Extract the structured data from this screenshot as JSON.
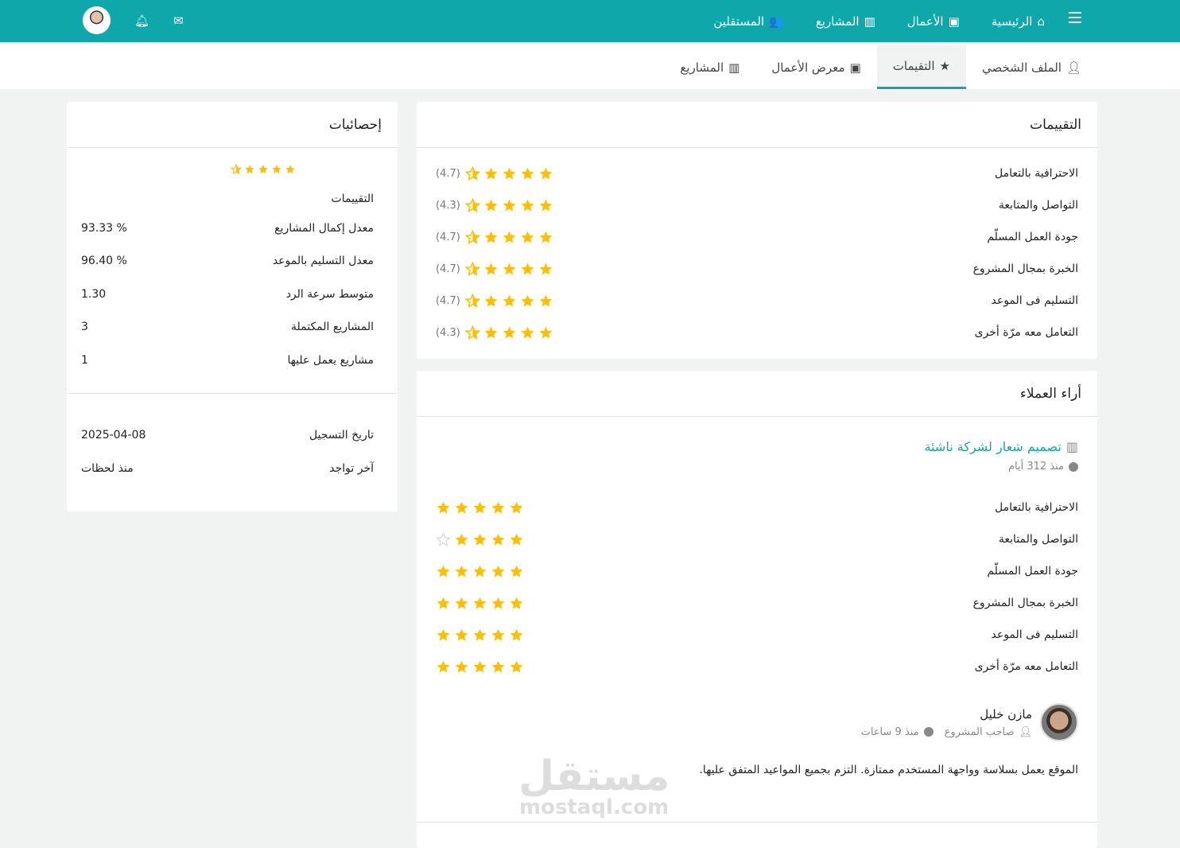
{
  "topnav": {
    "items": [
      {
        "label": "الرئيسية",
        "icon": "home-icon"
      },
      {
        "label": "الأعمال",
        "icon": "image-icon"
      },
      {
        "label": "المشاريع",
        "icon": "briefcase-icon"
      },
      {
        "label": "المستقلين",
        "icon": "users-icon"
      }
    ]
  },
  "colors": {
    "brand": "#0ea7aa",
    "star": "#ffbf00",
    "star_empty": "#d8d8d8"
  },
  "tabs": [
    {
      "label": "الملف الشخصي",
      "icon": "user-icon"
    },
    {
      "label": "التقيمات",
      "icon": "star-icon",
      "active": true
    },
    {
      "label": "معرض الأعمال",
      "icon": "image-icon"
    },
    {
      "label": "المشاريع",
      "icon": "briefcase-icon"
    }
  ],
  "ratings": {
    "title": "التقييمات",
    "items": [
      {
        "label": "الاحترافية بالتعامل",
        "value": 4.7,
        "text": "(4.7)"
      },
      {
        "label": "التواصل والمتابعة",
        "value": 4.3,
        "text": "(4.3)"
      },
      {
        "label": "جودة العمل المسلّم",
        "value": 4.7,
        "text": "(4.7)"
      },
      {
        "label": "الخبرة بمجال المشروع",
        "value": 4.7,
        "text": "(4.7)"
      },
      {
        "label": "التسليم فى الموعد",
        "value": 4.7,
        "text": "(4.7)"
      },
      {
        "label": "التعامل معه مرّة أخرى",
        "value": 4.3,
        "text": "(4.3)"
      }
    ]
  },
  "stats": {
    "title": "إحصائيات",
    "rating_label": "التقييمات",
    "rating_value": 4.6,
    "items": [
      {
        "label": "معدل إكمال المشاريع",
        "value": "93.33 %"
      },
      {
        "label": "معدل التسليم بالموعد",
        "value": "96.40 %"
      },
      {
        "label": "متوسط سرعة الرد",
        "value": "1.30"
      },
      {
        "label": "المشاريع المكتملة",
        "value": "3"
      },
      {
        "label": "مشاريع يعمل عليها",
        "value": "1"
      }
    ],
    "meta": [
      {
        "label": "تاريخ التسجيل",
        "value": "2025-04-08"
      },
      {
        "label": "آخر تواجد",
        "value": "منذ لحظات"
      }
    ]
  },
  "reviews": {
    "title": "أراء العملاء",
    "project": "تصميم شعار لشركة ناشئة",
    "time": "منذ 312 أيام",
    "items": [
      {
        "label": "الاحترافية بالتعامل",
        "value": 5
      },
      {
        "label": "التواصل والمتابعة",
        "value": 4
      },
      {
        "label": "جودة العمل المسلّم",
        "value": 5
      },
      {
        "label": "الخبرة بمجال المشروع",
        "value": 5
      },
      {
        "label": "التسليم فى الموعد",
        "value": 5
      },
      {
        "label": "التعامل معه مرّة أخرى",
        "value": 5
      }
    ],
    "reviewer": "مازن خليل",
    "role": "صاحب المشروع",
    "review_time": "منذ 9 ساعات",
    "comment": "الموقع يعمل بسلاسة وواجهة المستخدم ممتازة. التزم بجميع المواعيد المتفق عليها."
  },
  "watermark": {
    "arabic": "مستقل",
    "latin": "mostaql.com"
  }
}
